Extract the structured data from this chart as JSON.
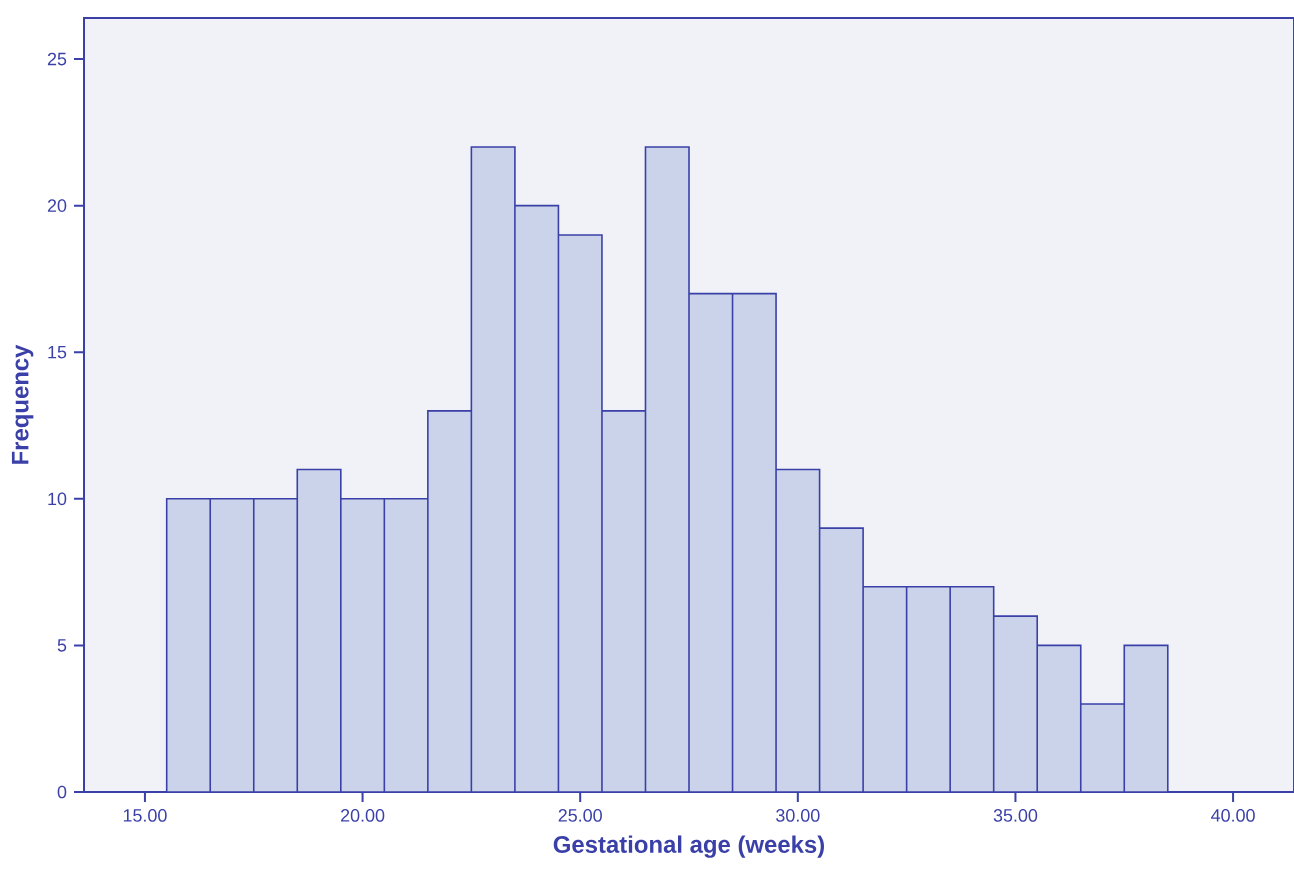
{
  "chart_data": {
    "type": "histogram",
    "xlabel": "Gestational age (weeks)",
    "ylabel": "Frequency",
    "bins": [
      15.5,
      16.5,
      17.5,
      18.5,
      19.5,
      20.5,
      21.5,
      22.5,
      23.5,
      24.5,
      25.5,
      26.5,
      27.5,
      28.5,
      29.5,
      30.5,
      31.5,
      32.5,
      33.5,
      34.5,
      35.5,
      36.5,
      37.5,
      38.5
    ],
    "values": [
      10,
      10,
      10,
      11,
      10,
      10,
      13,
      22,
      20,
      19,
      13,
      22,
      17,
      17,
      11,
      9,
      7,
      7,
      7,
      6,
      5,
      3,
      5
    ],
    "color": "#cbd3ea",
    "xlim": [
      13.6,
      41.4
    ],
    "ylim": [
      0,
      26.4
    ],
    "xticks": [
      {
        "value": 15,
        "label": "15.00"
      },
      {
        "value": 20,
        "label": "20.00"
      },
      {
        "value": 25,
        "label": "25.00"
      },
      {
        "value": 30,
        "label": "30.00"
      },
      {
        "value": 35,
        "label": "35.00"
      },
      {
        "value": 40,
        "label": "40.00"
      }
    ],
    "yticks": [
      0,
      5,
      10,
      15,
      20,
      25
    ]
  }
}
